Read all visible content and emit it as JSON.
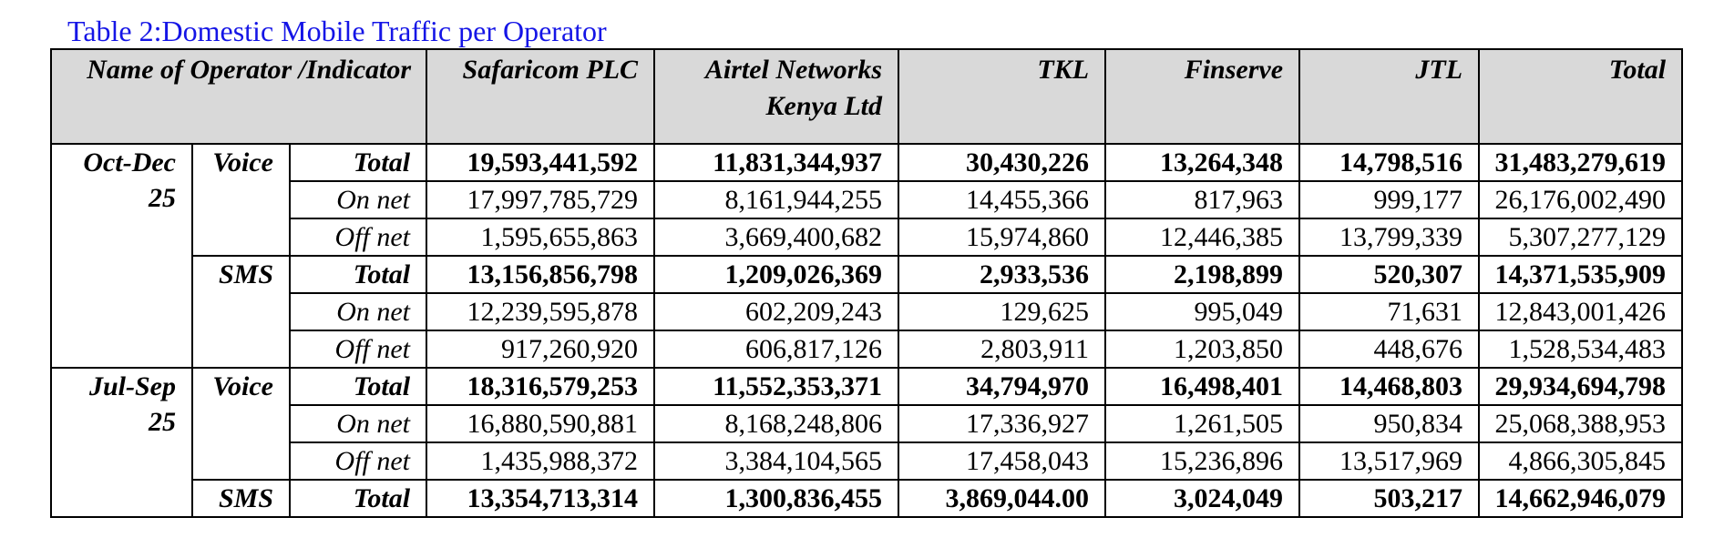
{
  "caption": "Table 2:Domestic Mobile Traffic per Operator",
  "header": {
    "indicator": "Name of Operator /Indicator",
    "operators": [
      [
        "Safaricom PLC"
      ],
      [
        "Airtel Networks",
        "Kenya Ltd"
      ],
      [
        "TKL"
      ],
      [
        "Finserve"
      ],
      [
        "JTL"
      ],
      [
        "Total"
      ]
    ]
  },
  "periods": [
    {
      "label": [
        "Oct-Dec",
        "25"
      ],
      "groups": [
        {
          "service": "Voice",
          "rows": [
            {
              "indicator": "Total",
              "total": true,
              "values": [
                "19,593,441,592",
                "11,831,344,937",
                "30,430,226",
                "13,264,348",
                "14,798,516",
                "31,483,279,619"
              ]
            },
            {
              "indicator": "On net",
              "total": false,
              "values": [
                "17,997,785,729",
                "8,161,944,255",
                "14,455,366",
                "817,963",
                "999,177",
                "26,176,002,490"
              ]
            },
            {
              "indicator": "Off net",
              "total": false,
              "values": [
                "1,595,655,863",
                "3,669,400,682",
                "15,974,860",
                "12,446,385",
                "13,799,339",
                "5,307,277,129"
              ]
            }
          ]
        },
        {
          "service": "SMS",
          "rows": [
            {
              "indicator": "Total",
              "total": true,
              "values": [
                "13,156,856,798",
                "1,209,026,369",
                "2,933,536",
                "2,198,899",
                "520,307",
                "14,371,535,909"
              ]
            },
            {
              "indicator": "On net",
              "total": false,
              "values": [
                "12,239,595,878",
                "602,209,243",
                "129,625",
                "995,049",
                "71,631",
                "12,843,001,426"
              ]
            },
            {
              "indicator": "Off net",
              "total": false,
              "values": [
                "917,260,920",
                "606,817,126",
                "2,803,911",
                "1,203,850",
                "448,676",
                "1,528,534,483"
              ]
            }
          ]
        }
      ]
    },
    {
      "label": [
        "Jul-Sep",
        "25"
      ],
      "groups": [
        {
          "service": "Voice",
          "rows": [
            {
              "indicator": "Total",
              "total": true,
              "values": [
                "18,316,579,253",
                "11,552,353,371",
                "34,794,970",
                "16,498,401",
                "14,468,803",
                "29,934,694,798"
              ]
            },
            {
              "indicator": "On net",
              "total": false,
              "values": [
                "16,880,590,881",
                "8,168,248,806",
                "17,336,927",
                "1,261,505",
                "950,834",
                "25,068,388,953"
              ]
            },
            {
              "indicator": "Off net",
              "total": false,
              "values": [
                "1,435,988,372",
                "3,384,104,565",
                "17,458,043",
                "15,236,896",
                "13,517,969",
                "4,866,305,845"
              ]
            }
          ]
        },
        {
          "service": "SMS",
          "rows": [
            {
              "indicator": "Total",
              "total": true,
              "values": [
                "13,354,713,314",
                "1,300,836,455",
                "3,869,044.00",
                "3,024,049",
                "503,217",
                "14,662,946,079"
              ]
            }
          ]
        }
      ]
    }
  ]
}
